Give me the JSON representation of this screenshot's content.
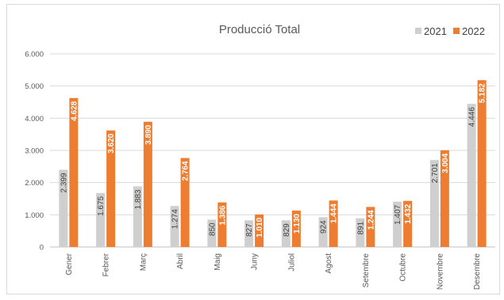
{
  "chart_data": {
    "type": "bar",
    "title": "Producció Total",
    "xlabel": "",
    "ylabel": "",
    "ylim": [
      0,
      6000
    ],
    "yticks": [
      0,
      1000,
      2000,
      3000,
      4000,
      5000,
      6000
    ],
    "ytick_labels": [
      "0",
      "1.000",
      "2.000",
      "3.000",
      "4.000",
      "5.000",
      "6.000"
    ],
    "grid": true,
    "legend_position": "top-right",
    "categories": [
      "Gener",
      "Febrer",
      "Març",
      "Abril",
      "Maig",
      "Juny",
      "Juliol",
      "Agost",
      "Setembre",
      "Octubre",
      "Novembre",
      "Desembre"
    ],
    "series": [
      {
        "name": "2021",
        "color": "#cfcfcf",
        "values": [
          2399,
          1675,
          1883,
          1274,
          850,
          827,
          829,
          924,
          891,
          1407,
          2701,
          4446
        ],
        "labels": [
          "2.399",
          "1.675",
          "1.883",
          "1.274",
          "850",
          "827",
          "829",
          "924",
          "891",
          "1.407",
          "2.701",
          "4.446"
        ]
      },
      {
        "name": "2022",
        "color": "#ed7d31",
        "values": [
          4628,
          3620,
          3890,
          2764,
          1386,
          1010,
          1130,
          1444,
          1244,
          1432,
          3004,
          5182
        ],
        "labels": [
          "4.628",
          "3.620",
          "3.890",
          "2.764",
          "1.386",
          "1.010",
          "1.130",
          "1.444",
          "1.244",
          "1.432",
          "3.004",
          "5.182"
        ]
      }
    ]
  }
}
